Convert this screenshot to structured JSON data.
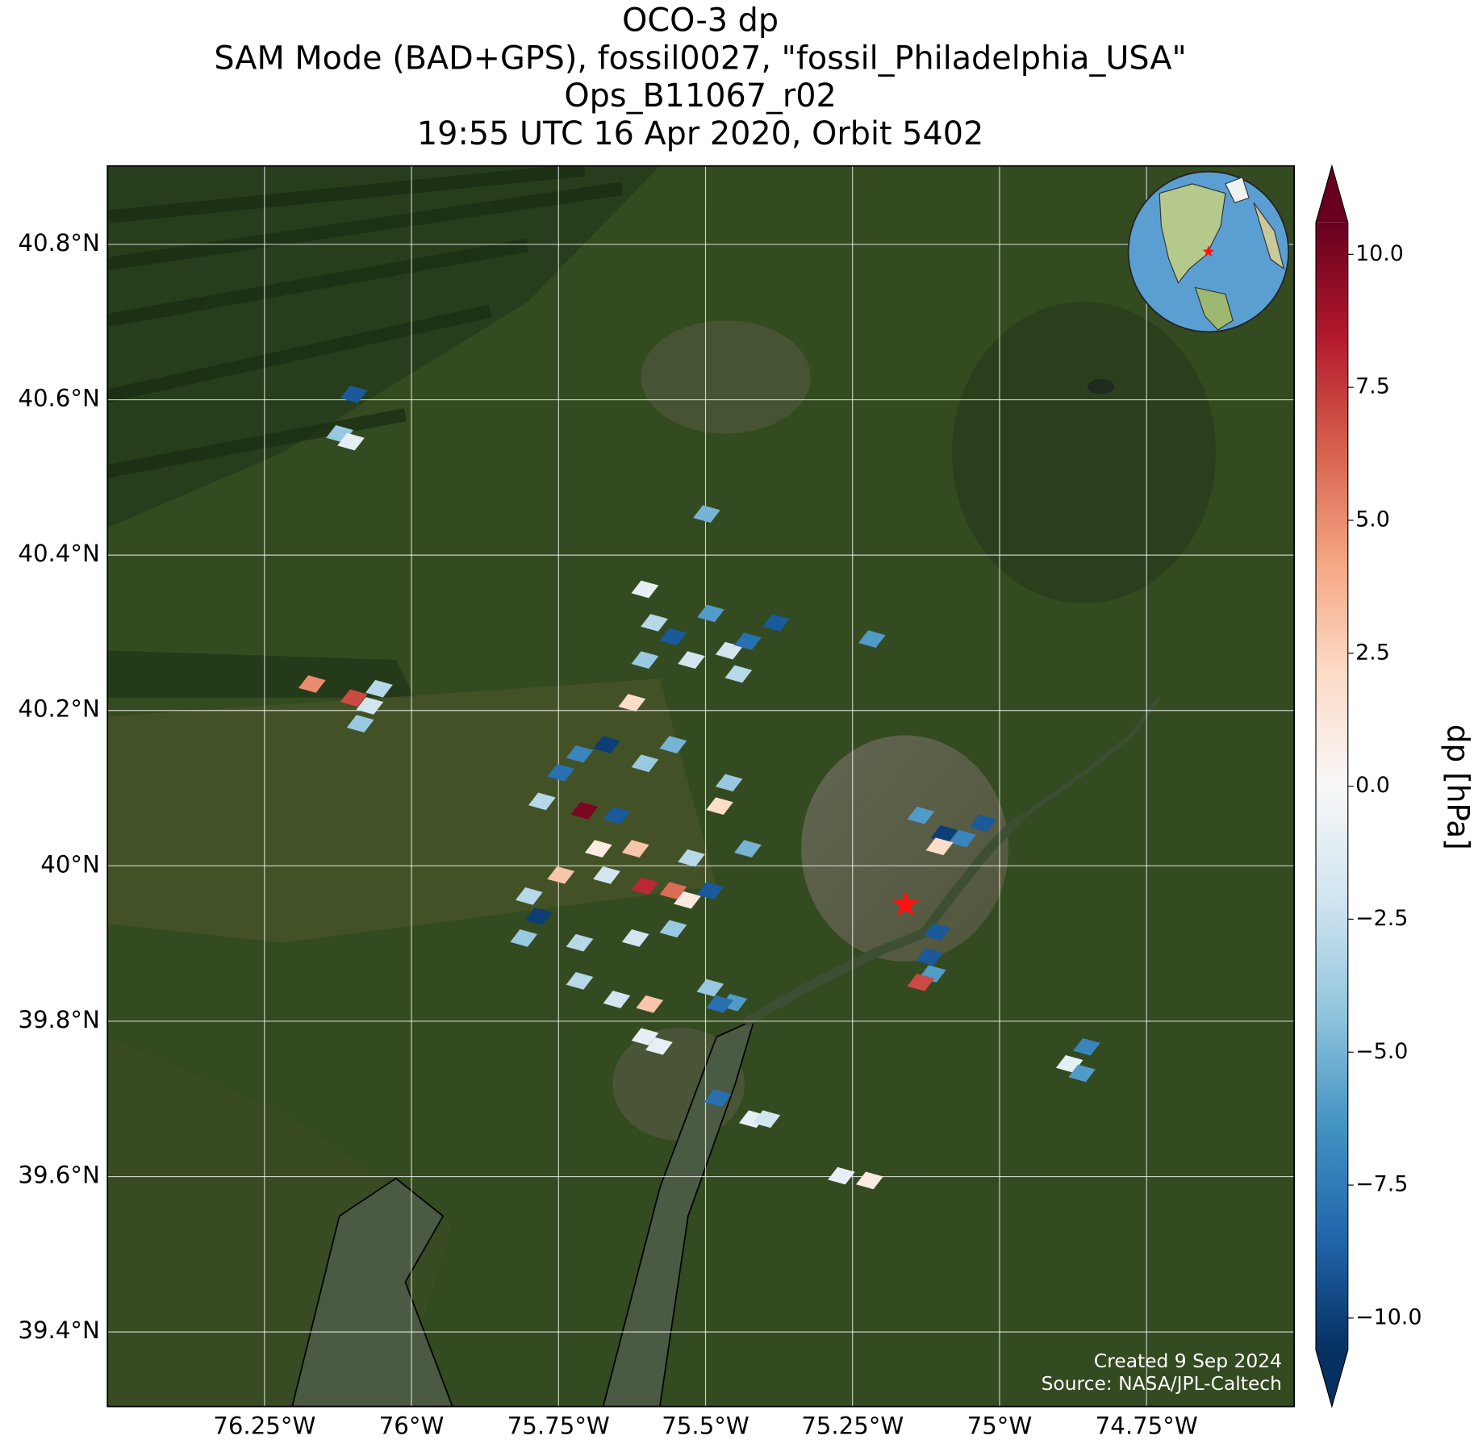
{
  "chart_data": {
    "type": "map",
    "title": [
      "OCO-3 dp",
      "SAM Mode (BAD+GPS), fossil0027, \"fossil_Philadelphia_USA\"",
      "Ops_B11067_r02",
      "19:55 UTC 16 Apr 2020, Orbit 5402"
    ],
    "xlim": [
      -76.517,
      -74.499
    ],
    "ylim": [
      39.304,
      40.901
    ],
    "xticks": [
      {
        "value": -76.25,
        "label": "76.25°W"
      },
      {
        "value": -76,
        "label": "76°W"
      },
      {
        "value": -75.75,
        "label": "75.75°W"
      },
      {
        "value": -75.5,
        "label": "75.5°W"
      },
      {
        "value": -75.25,
        "label": "75.25°W"
      },
      {
        "value": -75,
        "label": "75°W"
      },
      {
        "value": -74.75,
        "label": "74.75°W"
      }
    ],
    "yticks": [
      {
        "value": 40.8,
        "label": "40.8°N"
      },
      {
        "value": 40.6,
        "label": "40.6°N"
      },
      {
        "value": 40.4,
        "label": "40.4°N"
      },
      {
        "value": 40.2,
        "label": "40.2°N"
      },
      {
        "value": 40,
        "label": "40°N"
      },
      {
        "value": 39.8,
        "label": "39.8°N"
      },
      {
        "value": 39.6,
        "label": "39.6°N"
      },
      {
        "value": 39.4,
        "label": "39.4°N"
      }
    ],
    "grid": true,
    "colorbar": {
      "label": "dp [hPa]",
      "lim": [
        -10.6,
        10.6
      ],
      "ticks": [
        {
          "value": 10,
          "label": "10.0"
        },
        {
          "value": 7.5,
          "label": "7.5"
        },
        {
          "value": 5,
          "label": "5.0"
        },
        {
          "value": 2.5,
          "label": "2.5"
        },
        {
          "value": 0,
          "label": "0.0"
        },
        {
          "value": -2.5,
          "label": "−2.5"
        },
        {
          "value": -5,
          "label": "−5.0"
        },
        {
          "value": -7.5,
          "label": "−7.5"
        },
        {
          "value": -10,
          "label": "−10.0"
        }
      ],
      "colors": [
        "#053061",
        "#2166ac",
        "#4393c3",
        "#92c5de",
        "#d1e5f0",
        "#f7f7f7",
        "#fddbc7",
        "#f4a582",
        "#d6604d",
        "#b2182b",
        "#67001f"
      ]
    },
    "footprints": {
      "lon": [
        -76.098,
        -76.122,
        -76.103,
        -75.498,
        -75.603,
        -75.587,
        -75.555,
        -75.491,
        -75.46,
        -75.428,
        -75.38,
        -75.603,
        -75.524,
        -75.444,
        -75.625,
        -76.169,
        -76.098,
        -76.071,
        -76.055,
        -76.087,
        -75.217,
        -75.714,
        -75.668,
        -75.603,
        -75.555,
        -75.746,
        -75.778,
        -75.706,
        -75.651,
        -75.476,
        -75.46,
        -75.682,
        -75.619,
        -75.524,
        -75.428,
        -75.603,
        -75.555,
        -75.531,
        -75.492,
        -75.746,
        -75.668,
        -75.8,
        -75.784,
        -75.809,
        -75.714,
        -75.619,
        -75.555,
        -75.714,
        -75.651,
        -75.595,
        -75.603,
        -75.579,
        -75.492,
        -75.452,
        -75.476,
        -75.134,
        -75.094,
        -75.063,
        -75.102,
        -75.028,
        -75.106,
        -75.119,
        -75.114,
        -75.134,
        -74.852,
        -74.881,
        -74.86,
        -75.479,
        -75.42,
        -75.396,
        -75.269,
        -75.221
      ],
      "lat": [
        40.607,
        40.556,
        40.546,
        40.453,
        40.356,
        40.313,
        40.295,
        40.325,
        40.277,
        40.289,
        40.313,
        40.265,
        40.265,
        40.247,
        40.21,
        40.234,
        40.216,
        40.206,
        40.228,
        40.183,
        40.292,
        40.144,
        40.156,
        40.132,
        40.156,
        40.12,
        40.083,
        40.071,
        40.065,
        40.077,
        40.107,
        40.022,
        40.022,
        40.01,
        40.022,
        39.974,
        39.968,
        39.956,
        39.968,
        39.988,
        39.988,
        39.961,
        39.935,
        39.907,
        39.901,
        39.907,
        39.919,
        39.852,
        39.828,
        39.822,
        39.78,
        39.768,
        39.843,
        39.824,
        39.822,
        40.065,
        40.041,
        40.035,
        40.025,
        40.055,
        39.915,
        39.883,
        39.861,
        39.85,
        39.767,
        39.745,
        39.733,
        39.701,
        39.674,
        39.674,
        39.601,
        39.595
      ],
      "dp": [
        -9,
        -4,
        -1,
        -5,
        -1,
        -3,
        -9,
        -6,
        -2,
        -8,
        -9,
        -4,
        -2,
        -3,
        2,
        5,
        7,
        -2,
        -3,
        -4,
        -6,
        -7,
        -10,
        -4,
        -5,
        -8,
        -3,
        10,
        -9,
        2,
        -4,
        1,
        3,
        -3,
        -5,
        8,
        6,
        1,
        -9,
        3,
        -2,
        -3,
        -10,
        -4,
        -3,
        -2,
        -4,
        -3,
        -2,
        3,
        -1,
        -1,
        -4,
        -6,
        -8,
        -6,
        -10,
        -7,
        2,
        -9,
        -9,
        -9,
        -6,
        7,
        -7,
        -1,
        -6,
        -8,
        -1,
        -2,
        -1,
        1
      ]
    },
    "site": {
      "lon": -75.16,
      "lat": 39.95
    },
    "annotations": [
      "Created 9 Sep 2024",
      "Source: NASA/JPL-Caltech"
    ]
  }
}
